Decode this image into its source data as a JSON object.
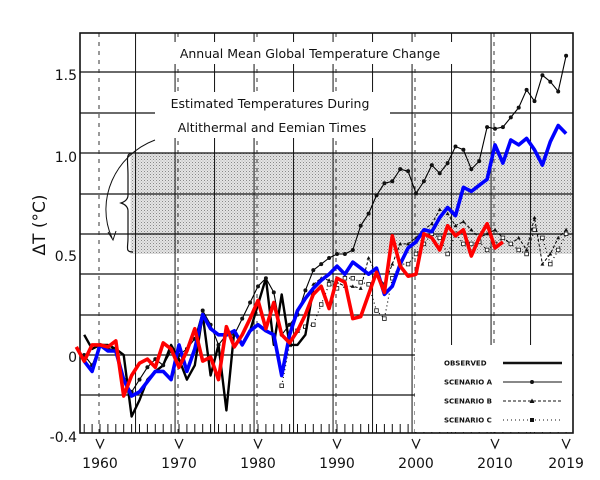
{
  "chart_data": {
    "type": "line",
    "title": "Annual Mean Global Temperature Change",
    "annotation": {
      "lines": [
        "Estimated Temperatures During",
        "Altithermal and Eemian Times"
      ],
      "shaded_range": [
        0.5,
        1.0
      ],
      "shaded_from_year": 1964
    },
    "xlabel": "",
    "ylabel": "ΔT (°C)",
    "xlim": [
      1957.5,
      2019.8
    ],
    "ylim": [
      -0.4,
      1.6
    ],
    "x_ticks": [
      "1960",
      "1970",
      "1980",
      "1990",
      "2000",
      "2010",
      "2019"
    ],
    "x_tick_values": [
      1960,
      1970,
      1980,
      1990,
      2000,
      2010,
      2019
    ],
    "y_ticks": [
      "1.5",
      "1.0",
      "0.5",
      "0",
      "-0.4"
    ],
    "y_tick_values": [
      1.5,
      1.0,
      0.5,
      0,
      -0.4
    ],
    "grid": true,
    "legend_position": "bottom-right",
    "legend": [
      "OBSERVED",
      "SCENARIO A",
      "SCENARIO B",
      "SCENARIO C"
    ],
    "series": [
      {
        "name": "OBSERVED",
        "color": "#000000",
        "style": "solid-thick",
        "x": [
          1958,
          1959,
          1960,
          1961,
          1962,
          1963,
          1964,
          1965,
          1966,
          1967,
          1968,
          1969,
          1970,
          1971,
          1972,
          1973,
          1974,
          1975,
          1976,
          1977,
          1978,
          1979,
          1980,
          1981,
          1982,
          1983,
          1984,
          1985,
          1986,
          1987
        ],
        "y": [
          0.1,
          0.03,
          0.05,
          0.05,
          0.03,
          0.0,
          -0.3,
          -0.22,
          -0.12,
          -0.08,
          -0.05,
          0.05,
          -0.02,
          -0.12,
          -0.05,
          0.2,
          -0.1,
          0.05,
          -0.27,
          0.12,
          0.05,
          0.12,
          0.25,
          0.38,
          0.05,
          0.3,
          0.05,
          0.05,
          0.1,
          0.33
        ]
      },
      {
        "name": "SCENARIO A",
        "color": "#000000",
        "style": "solid-dots",
        "x": [
          1958,
          1959,
          1960,
          1961,
          1962,
          1963,
          1964,
          1965,
          1966,
          1967,
          1968,
          1969,
          1970,
          1971,
          1972,
          1973,
          1974,
          1975,
          1976,
          1977,
          1978,
          1979,
          1980,
          1981,
          1982,
          1983,
          1984,
          1985,
          1986,
          1987,
          1988,
          1989,
          1990,
          1991,
          1992,
          1993,
          1994,
          1995,
          1996,
          1997,
          1998,
          1999,
          2000,
          2001,
          2002,
          2003,
          2004,
          2005,
          2006,
          2007,
          2008,
          2009,
          2010,
          2011,
          2012,
          2013,
          2014,
          2015,
          2016,
          2017,
          2018,
          2019
        ],
        "y": [
          0.0,
          -0.05,
          0.05,
          0.03,
          0.03,
          -0.12,
          -0.18,
          -0.12,
          -0.06,
          -0.02,
          -0.05,
          0.02,
          0.0,
          0.03,
          0.08,
          0.22,
          0.15,
          0.05,
          0.1,
          0.1,
          0.18,
          0.26,
          0.34,
          0.38,
          0.31,
          0.1,
          0.15,
          0.2,
          0.32,
          0.42,
          0.45,
          0.48,
          0.5,
          0.5,
          0.52,
          0.64,
          0.7,
          0.79,
          0.85,
          0.86,
          0.92,
          0.91,
          0.8,
          0.86,
          0.94,
          0.9,
          0.95,
          1.04,
          1.02,
          0.92,
          0.96,
          1.16,
          1.15,
          1.16,
          1.22,
          1.28,
          1.39,
          1.32,
          1.48,
          1.44,
          1.38,
          1.6
        ]
      },
      {
        "name": "SCENARIO B",
        "color": "#000000",
        "style": "dashed-triangles",
        "x": [
          1987,
          1988,
          1989,
          1990,
          1991,
          1992,
          1993,
          1994,
          1995,
          1996,
          1997,
          1998,
          1999,
          2000,
          2001,
          2002,
          2003,
          2004,
          2005,
          2006,
          2007,
          2008,
          2009,
          2010,
          2011,
          2012,
          2013,
          2014,
          2015,
          2016,
          2017,
          2018,
          2019
        ],
        "y": [
          0.35,
          0.38,
          0.37,
          0.36,
          0.34,
          0.34,
          0.33,
          0.48,
          0.4,
          0.35,
          0.45,
          0.55,
          0.55,
          0.58,
          0.62,
          0.65,
          0.72,
          0.7,
          0.64,
          0.66,
          0.62,
          0.58,
          0.6,
          0.62,
          0.58,
          0.55,
          0.58,
          0.52,
          0.68,
          0.45,
          0.5,
          0.58,
          0.62
        ]
      },
      {
        "name": "SCENARIO C",
        "color": "#000000",
        "style": "dotted-squares",
        "x": [
          1983,
          1984,
          1985,
          1986,
          1987,
          1988,
          1989,
          1990,
          1991,
          1992,
          1993,
          1994,
          1995,
          1996,
          1997,
          1998,
          1999,
          2000,
          2001,
          2002,
          2003,
          2004,
          2005,
          2006,
          2007,
          2008,
          2009,
          2010,
          2011,
          2012,
          2013,
          2014,
          2015,
          2016,
          2017,
          2018,
          2019
        ],
        "y": [
          -0.15,
          0.05,
          0.12,
          0.14,
          0.15,
          0.25,
          0.35,
          0.33,
          0.38,
          0.38,
          0.36,
          0.35,
          0.22,
          0.18,
          0.38,
          0.45,
          0.45,
          0.5,
          0.55,
          0.6,
          0.58,
          0.5,
          0.6,
          0.55,
          0.55,
          0.56,
          0.52,
          0.55,
          0.58,
          0.55,
          0.52,
          0.5,
          0.62,
          0.58,
          0.45,
          0.52,
          0.6
        ]
      },
      {
        "color": "#0000ff",
        "style": "overlay-thick",
        "x": [
          1958,
          1959,
          1960,
          1961,
          1962,
          1963,
          1964,
          1965,
          1966,
          1967,
          1968,
          1969,
          1970,
          1971,
          1972,
          1973,
          1974,
          1975,
          1976,
          1977,
          1978,
          1979,
          1980,
          1981,
          1982,
          1983,
          1984,
          1985,
          1986,
          1987,
          1988,
          1989,
          1990,
          1991,
          1992,
          1993,
          1994,
          1995,
          1996,
          1997,
          1998,
          1999,
          2000,
          2001,
          2002,
          2003,
          2004,
          2005,
          2006,
          2007,
          2008,
          2009,
          2010,
          2011,
          2012,
          2013,
          2014,
          2015,
          2016,
          2017,
          2018,
          2019
        ],
        "y": [
          -0.03,
          -0.08,
          0.05,
          0.02,
          0.02,
          -0.12,
          -0.2,
          -0.18,
          -0.13,
          -0.08,
          -0.08,
          -0.12,
          0.05,
          -0.08,
          0.03,
          0.2,
          0.13,
          0.1,
          0.1,
          0.12,
          0.05,
          0.12,
          0.15,
          0.12,
          0.1,
          -0.1,
          0.1,
          0.22,
          0.28,
          0.33,
          0.37,
          0.4,
          0.44,
          0.4,
          0.46,
          0.43,
          0.4,
          0.43,
          0.3,
          0.34,
          0.45,
          0.53,
          0.56,
          0.62,
          0.61,
          0.68,
          0.73,
          0.69,
          0.83,
          0.81,
          0.84,
          0.87,
          1.05,
          0.95,
          1.08,
          1.05,
          1.09,
          1.02,
          0.94,
          1.07,
          1.17,
          1.12
        ]
      },
      {
        "color": "#ff0000",
        "style": "overlay-thick",
        "x": [
          1957,
          1958,
          1959,
          1960,
          1961,
          1962,
          1963,
          1964,
          1965,
          1966,
          1967,
          1968,
          1969,
          1970,
          1971,
          1972,
          1973,
          1974,
          1975,
          1976,
          1977,
          1978,
          1979,
          1980,
          1981,
          1982,
          1983,
          1984,
          1985,
          1986,
          1987,
          1988,
          1989,
          1990,
          1991,
          1992,
          1993,
          1994,
          1995,
          1996,
          1997,
          1998,
          1999,
          2000,
          2001,
          2002,
          2003,
          2004,
          2005,
          2006,
          2007,
          2008,
          2009,
          2010,
          2011
        ],
        "y": [
          0.04,
          -0.03,
          0.05,
          0.05,
          0.04,
          0.07,
          -0.2,
          -0.1,
          -0.04,
          -0.02,
          -0.06,
          0.06,
          0.03,
          -0.06,
          0.02,
          0.13,
          -0.03,
          -0.01,
          -0.12,
          0.14,
          0.04,
          0.1,
          0.18,
          0.27,
          0.13,
          0.26,
          0.1,
          0.06,
          0.12,
          0.2,
          0.3,
          0.34,
          0.23,
          0.38,
          0.36,
          0.18,
          0.19,
          0.3,
          0.41,
          0.31,
          0.59,
          0.44,
          0.39,
          0.4,
          0.6,
          0.58,
          0.52,
          0.64,
          0.59,
          0.62,
          0.49,
          0.58,
          0.65,
          0.53,
          0.56
        ]
      }
    ]
  }
}
